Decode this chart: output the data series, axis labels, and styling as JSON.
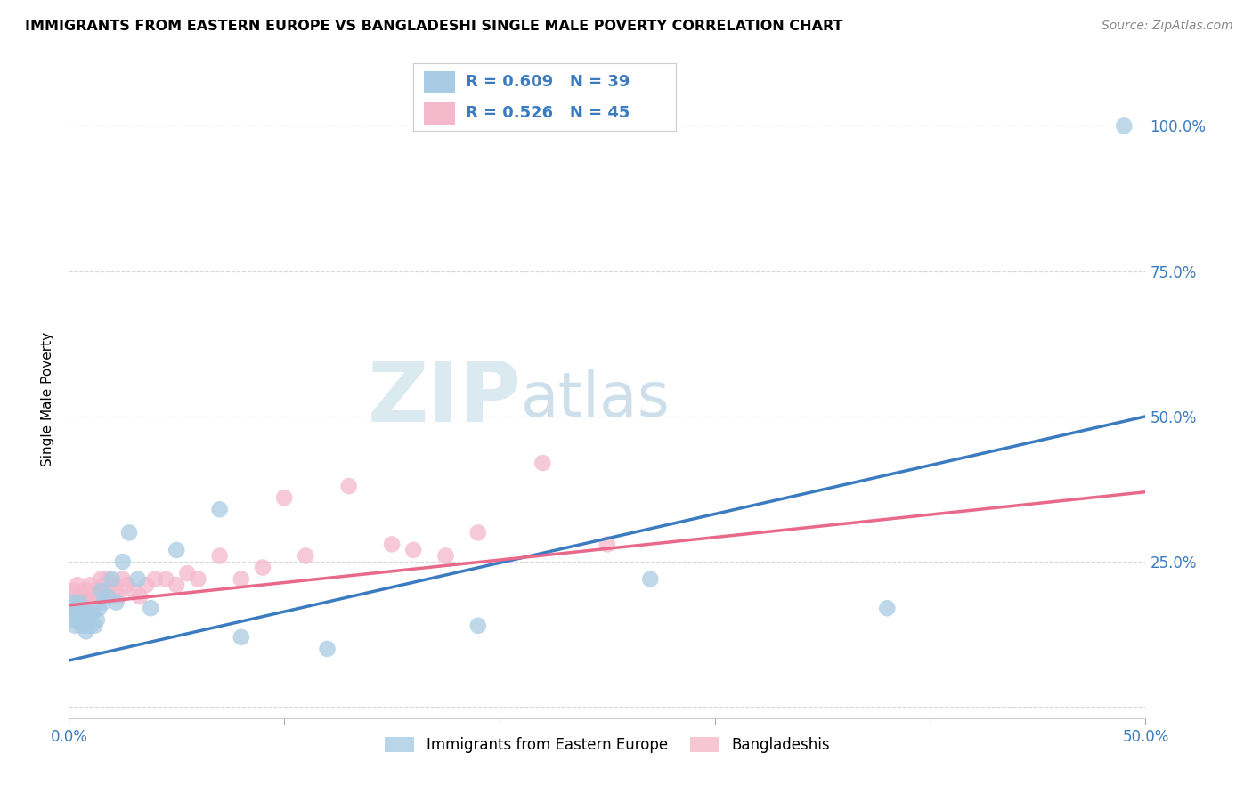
{
  "title": "IMMIGRANTS FROM EASTERN EUROPE VS BANGLADESHI SINGLE MALE POVERTY CORRELATION CHART",
  "source": "Source: ZipAtlas.com",
  "ylabel": "Single Male Poverty",
  "xlim": [
    0.0,
    0.5
  ],
  "ylim": [
    -0.02,
    1.08
  ],
  "yticks": [
    0.0,
    0.25,
    0.5,
    0.75,
    1.0
  ],
  "ytick_labels": [
    "",
    "25.0%",
    "50.0%",
    "75.0%",
    "100.0%"
  ],
  "xticks": [
    0.0,
    0.1,
    0.2,
    0.3,
    0.4,
    0.5
  ],
  "xtick_labels": [
    "0.0%",
    "",
    "",
    "",
    "",
    "50.0%"
  ],
  "blue_R": 0.609,
  "blue_N": 39,
  "pink_R": 0.526,
  "pink_N": 45,
  "blue_color": "#a8cce4",
  "pink_color": "#f4b8cb",
  "blue_line_color": "#3b7bbf",
  "pink_line_color": "#e8698a",
  "blue_label": "Immigrants from Eastern Europe",
  "pink_label": "Bangladeshis",
  "watermark_zip": "ZIP",
  "watermark_atlas": "atlas",
  "blue_scatter_x": [
    0.001,
    0.002,
    0.002,
    0.003,
    0.003,
    0.004,
    0.004,
    0.005,
    0.005,
    0.006,
    0.006,
    0.007,
    0.007,
    0.008,
    0.008,
    0.009,
    0.01,
    0.01,
    0.011,
    0.012,
    0.013,
    0.014,
    0.015,
    0.016,
    0.018,
    0.02,
    0.022,
    0.025,
    0.028,
    0.032,
    0.038,
    0.05,
    0.07,
    0.08,
    0.12,
    0.19,
    0.27,
    0.38,
    0.49
  ],
  "blue_scatter_y": [
    0.17,
    0.15,
    0.18,
    0.14,
    0.16,
    0.15,
    0.17,
    0.16,
    0.18,
    0.14,
    0.16,
    0.15,
    0.17,
    0.14,
    0.13,
    0.15,
    0.16,
    0.14,
    0.16,
    0.14,
    0.15,
    0.17,
    0.2,
    0.18,
    0.19,
    0.22,
    0.18,
    0.25,
    0.3,
    0.22,
    0.17,
    0.27,
    0.34,
    0.12,
    0.1,
    0.14,
    0.22,
    0.17,
    1.0
  ],
  "pink_scatter_x": [
    0.001,
    0.002,
    0.002,
    0.003,
    0.004,
    0.005,
    0.005,
    0.006,
    0.007,
    0.008,
    0.009,
    0.01,
    0.01,
    0.011,
    0.012,
    0.013,
    0.015,
    0.016,
    0.017,
    0.018,
    0.02,
    0.022,
    0.023,
    0.025,
    0.027,
    0.03,
    0.033,
    0.036,
    0.04,
    0.045,
    0.05,
    0.055,
    0.06,
    0.07,
    0.08,
    0.09,
    0.1,
    0.11,
    0.13,
    0.15,
    0.16,
    0.175,
    0.19,
    0.22,
    0.25
  ],
  "pink_scatter_y": [
    0.17,
    0.19,
    0.2,
    0.18,
    0.21,
    0.19,
    0.18,
    0.2,
    0.19,
    0.18,
    0.2,
    0.19,
    0.21,
    0.17,
    0.2,
    0.19,
    0.22,
    0.21,
    0.2,
    0.22,
    0.21,
    0.2,
    0.19,
    0.22,
    0.21,
    0.2,
    0.19,
    0.21,
    0.22,
    0.22,
    0.21,
    0.23,
    0.22,
    0.26,
    0.22,
    0.24,
    0.36,
    0.26,
    0.38,
    0.28,
    0.27,
    0.26,
    0.3,
    0.42,
    0.28
  ],
  "blue_line_x": [
    0.0,
    0.5
  ],
  "blue_line_y": [
    0.08,
    0.5
  ],
  "pink_line_x": [
    0.0,
    0.5
  ],
  "pink_line_y": [
    0.175,
    0.37
  ]
}
